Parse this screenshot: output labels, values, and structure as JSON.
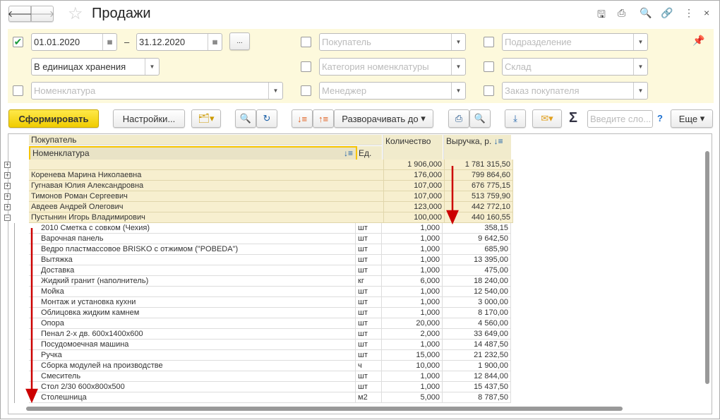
{
  "window": {
    "title": "Продажи"
  },
  "filters": {
    "period_enabled": true,
    "date_from": "01.01.2020",
    "date_to": "31.12.2020",
    "dash": "–",
    "more_label": "...",
    "units": "В единицах хранения",
    "nomenclature_ph": "Номенклатура",
    "buyer_ph": "Покупатель",
    "category_ph": "Категория номенклатуры",
    "manager_ph": "Менеджер",
    "department_ph": "Подразделение",
    "warehouse_ph": "Склад",
    "order_ph": "Заказ покупателя"
  },
  "toolbar": {
    "generate": "Сформировать",
    "settings": "Настройки...",
    "expand": "Разворачивать до",
    "search_ph": "Введите сло...",
    "help": "?",
    "more": "Еще",
    "sigma": "Σ"
  },
  "table": {
    "headers": {
      "buyer": "Покупатель",
      "nomenclature": "Номенклатура",
      "unit": "Ед.",
      "quantity": "Количество",
      "revenue": "Выручка, р."
    },
    "total": {
      "quantity": "1 906,000",
      "revenue": "1 781 315,50"
    },
    "groups": [
      {
        "name": "Коренева Марина Николаевна",
        "quantity": "176,000",
        "revenue": "799 864,60",
        "expanded": false
      },
      {
        "name": "Гугнавая Юлия Александровна",
        "quantity": "107,000",
        "revenue": "676 775,15",
        "expanded": false
      },
      {
        "name": "Тимонов Роман Сергеевич",
        "quantity": "107,000",
        "revenue": "513 759,90",
        "expanded": false
      },
      {
        "name": "Авдеев Андрей Олегович",
        "quantity": "123,000",
        "revenue": "442 772,10",
        "expanded": false
      },
      {
        "name": "Пустынин Игорь Владимирович",
        "quantity": "100,000",
        "revenue": "440 160,55",
        "expanded": true
      }
    ],
    "details": [
      [
        "2010 Сметка с совком (Чехия)",
        "шт",
        "1,000",
        "358,15"
      ],
      [
        "Варочная панель",
        "шт",
        "1,000",
        "9 642,50"
      ],
      [
        "Ведро пластмассовое BRISKO с отжимом (\"POBEDA\")",
        "шт",
        "1,000",
        "685,90"
      ],
      [
        "Вытяжка",
        "шт",
        "1,000",
        "13 395,00"
      ],
      [
        "Доставка",
        "шт",
        "1,000",
        "475,00"
      ],
      [
        "Жидкий гранит (наполнитель)",
        "кг",
        "6,000",
        "18 240,00"
      ],
      [
        "Мойка",
        "шт",
        "1,000",
        "12 540,00"
      ],
      [
        "Монтаж и установка кухни",
        "шт",
        "1,000",
        "3 000,00"
      ],
      [
        "Облицовка жидким камнем",
        "шт",
        "1,000",
        "8 170,00"
      ],
      [
        "Опора",
        "шт",
        "20,000",
        "4 560,00"
      ],
      [
        "Пенал 2-х дв. 600х1400х600",
        "шт",
        "2,000",
        "33 649,00"
      ],
      [
        "Посудомоечная машина",
        "шт",
        "1,000",
        "14 487,50"
      ],
      [
        "Ручка",
        "шт",
        "15,000",
        "21 232,50"
      ],
      [
        "Сборка модулей на производстве",
        "ч",
        "10,000",
        "1 900,00"
      ],
      [
        "Смеситель",
        "шт",
        "1,000",
        "12 844,00"
      ],
      [
        "Стол 2/30 600х800х500",
        "шт",
        "1,000",
        "15 437,50"
      ],
      [
        "Столешница",
        "м2",
        "5,000",
        "8 787,50"
      ]
    ]
  },
  "colors": {
    "accent": "#f5d800",
    "filter_bg": "#fdf9dc",
    "group_bg": "#f7efcf",
    "arrow": "#cc0000"
  }
}
